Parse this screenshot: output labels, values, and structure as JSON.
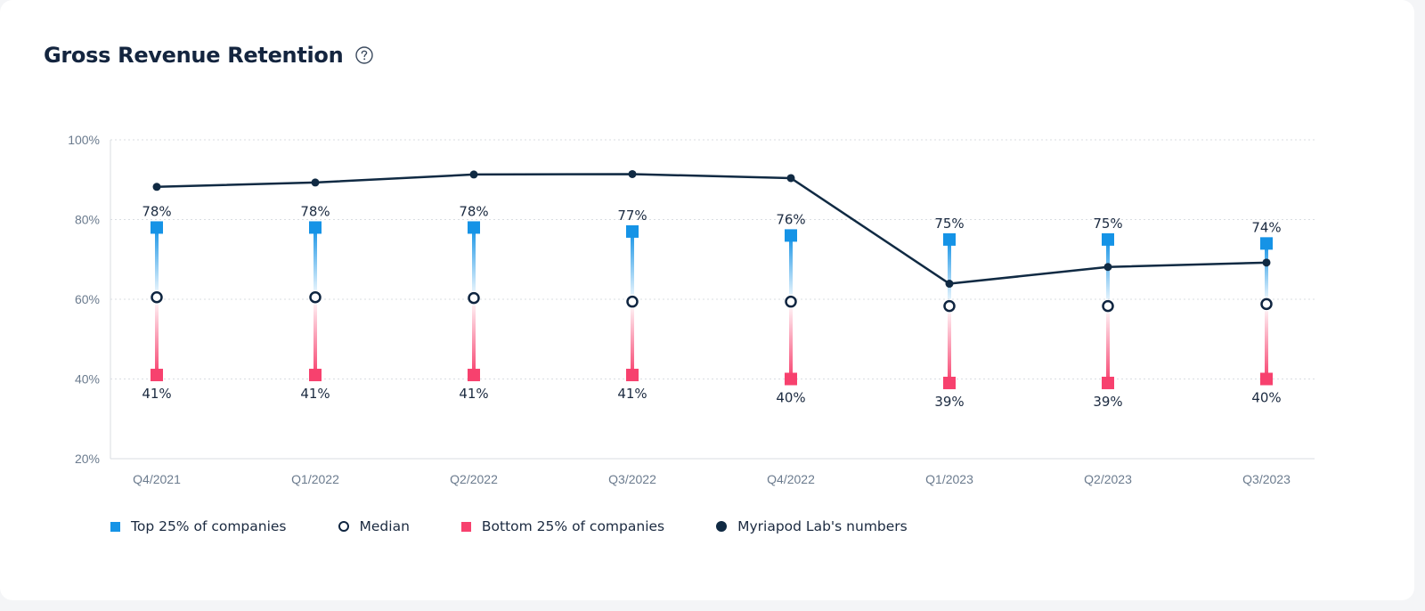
{
  "page": {
    "title": "Gross Revenue Retention"
  },
  "icons": {
    "help": "question-circle-icon"
  },
  "colors": {
    "top": "#1593e6",
    "bottom": "#f7416e",
    "median_stroke": "#0f2540",
    "company": "#102a43",
    "axis_text": "#6b7b8e",
    "grid": "#d9dde2"
  },
  "chart_data": {
    "type": "line",
    "title": "Gross Revenue Retention",
    "categories": [
      "Q4/2021",
      "Q1/2022",
      "Q2/2022",
      "Q3/2022",
      "Q4/2022",
      "Q1/2023",
      "Q2/2023",
      "Q3/2023"
    ],
    "ylim": [
      20,
      100
    ],
    "yticks": [
      "20%",
      "40%",
      "60%",
      "80%",
      "100%"
    ],
    "grid": true,
    "legend_position": "bottom-left",
    "series": [
      {
        "name": "Top 25% of companies",
        "marker": "square",
        "values": [
          78,
          78,
          78,
          77,
          76,
          75,
          75,
          74
        ],
        "labels": [
          "78%",
          "78%",
          "78%",
          "77%",
          "76%",
          "75%",
          "75%",
          "74%"
        ]
      },
      {
        "name": "Median",
        "marker": "hollow-circle",
        "values": [
          60.5,
          60.5,
          60.3,
          59.4,
          59.4,
          58.3,
          58.3,
          58.8
        ]
      },
      {
        "name": "Bottom 25% of companies",
        "marker": "square",
        "values": [
          41,
          41,
          41,
          41,
          40,
          39,
          39,
          40
        ],
        "labels": [
          "41%",
          "41%",
          "41%",
          "41%",
          "40%",
          "39%",
          "39%",
          "40%"
        ]
      },
      {
        "name": "Myriapod Lab's numbers",
        "marker": "dot-line",
        "values": [
          88.2,
          89.3,
          91.3,
          91.4,
          90.4,
          63.9,
          68.1,
          69.2
        ]
      }
    ]
  }
}
